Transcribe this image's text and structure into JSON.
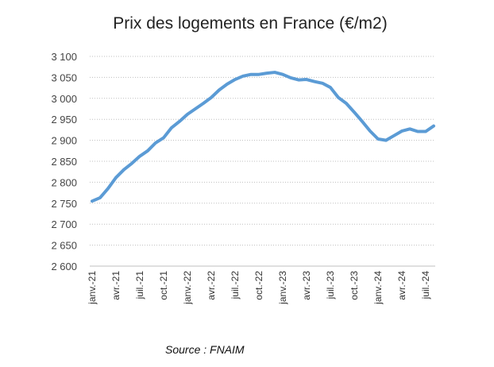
{
  "chart_data": {
    "type": "line",
    "title": "Prix des logements en France (€/m2)",
    "source": "Source : FNAIM",
    "xlabel": "",
    "ylabel": "",
    "ylim": [
      2600,
      3100
    ],
    "yticks": [
      2600,
      2650,
      2700,
      2750,
      2800,
      2850,
      2900,
      2950,
      3000,
      3050,
      3100
    ],
    "ytick_labels": [
      "2 600",
      "2 650",
      "2 700",
      "2 750",
      "2 800",
      "2 850",
      "2 900",
      "2 950",
      "3 000",
      "3 050",
      "3 100"
    ],
    "xtick_labels": [
      "janv.-21",
      "avr.-21",
      "juil.-21",
      "oct.-21",
      "janv.-22",
      "avr.-22",
      "juil.-22",
      "oct.-22",
      "janv.-23",
      "avr.-23",
      "juil.-23",
      "oct.-23",
      "janv.-24",
      "avr.-24",
      "juil.-24"
    ],
    "xtick_step_months": 3,
    "grid": "horizontal-dotted",
    "series": [
      {
        "name": "Prix (€/m2)",
        "color": "#5B9BD5",
        "start": "janv.-21",
        "frequency": "monthly",
        "values": [
          2755,
          2763,
          2785,
          2811,
          2830,
          2845,
          2862,
          2875,
          2894,
          2906,
          2930,
          2945,
          2962,
          2975,
          2988,
          3002,
          3020,
          3034,
          3045,
          3053,
          3057,
          3057,
          3060,
          3062,
          3057,
          3049,
          3044,
          3045,
          3040,
          3036,
          3026,
          3002,
          2988,
          2967,
          2945,
          2922,
          2903,
          2900,
          2911,
          2922,
          2927,
          2921,
          2921,
          2934
        ]
      }
    ]
  }
}
